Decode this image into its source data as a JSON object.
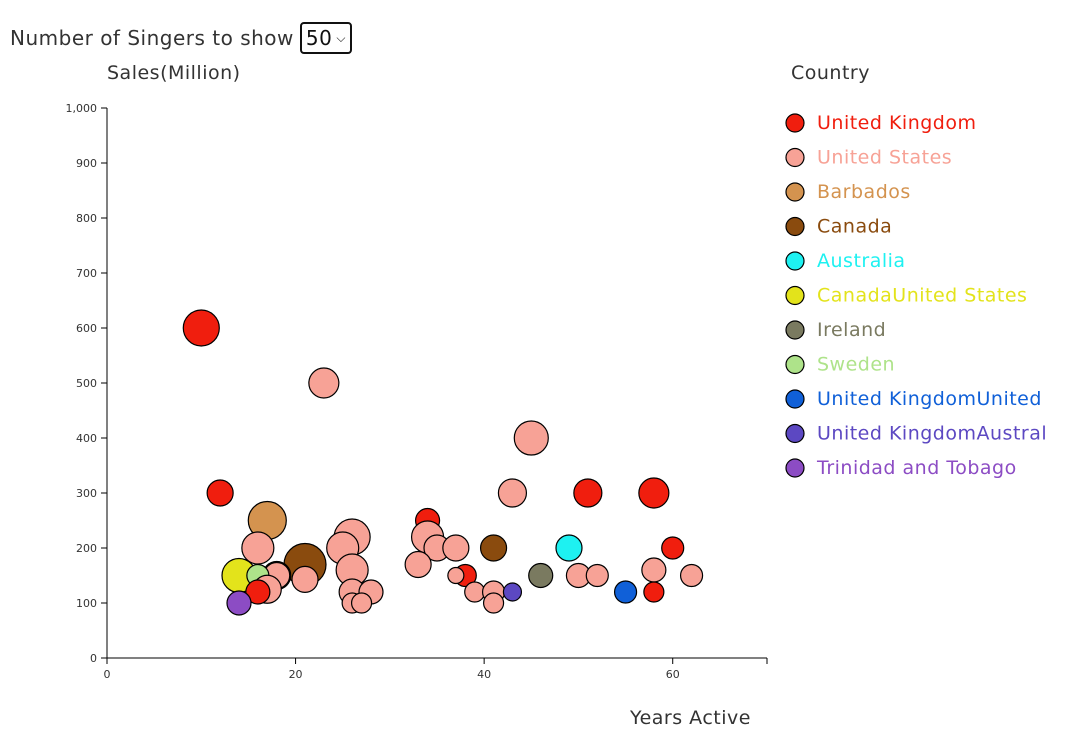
{
  "controls": {
    "label": "Number of Singers to show",
    "selected": "50"
  },
  "legend": {
    "title": "Country",
    "items": [
      {
        "label": "United Kingdom",
        "color": "#f01e0e"
      },
      {
        "label": "United States",
        "color": "#f7a296"
      },
      {
        "label": "Barbados",
        "color": "#d4934f"
      },
      {
        "label": "Canada",
        "color": "#8a4b0e"
      },
      {
        "label": "Australia",
        "color": "#1ef1f1"
      },
      {
        "label": "CanadaUnited States",
        "color": "#e3e31b"
      },
      {
        "label": "Ireland",
        "color": "#7a7a60"
      },
      {
        "label": "Sweden",
        "color": "#aee38a"
      },
      {
        "label": "United KingdomUnited",
        "color": "#1060d8"
      },
      {
        "label": "United KingdomAustral",
        "color": "#5c48c2"
      },
      {
        "label": "Trinidad and Tobago",
        "color": "#8c4cc4"
      }
    ]
  },
  "chart_data": {
    "type": "scatter",
    "xlabel": "Years Active",
    "ylabel": "Sales(Million)",
    "xlim": [
      0,
      70
    ],
    "ylim": [
      0,
      1000
    ],
    "xticks": [
      0,
      20,
      40,
      60
    ],
    "yticks": [
      0,
      100,
      200,
      300,
      400,
      500,
      600,
      700,
      800,
      900,
      1000
    ],
    "ytick_labels": [
      "0",
      "100",
      "200",
      "300",
      "400",
      "500",
      "600",
      "700",
      "800",
      "900",
      "1,000"
    ],
    "points": [
      {
        "x": 10,
        "y": 600,
        "country": "United Kingdom",
        "r": 18
      },
      {
        "x": 23,
        "y": 500,
        "country": "United States",
        "r": 15
      },
      {
        "x": 45,
        "y": 400,
        "country": "United States",
        "r": 17
      },
      {
        "x": 12,
        "y": 300,
        "country": "United Kingdom",
        "r": 13
      },
      {
        "x": 43,
        "y": 300,
        "country": "United States",
        "r": 14
      },
      {
        "x": 51,
        "y": 300,
        "country": "United Kingdom",
        "r": 14
      },
      {
        "x": 58,
        "y": 300,
        "country": "United Kingdom",
        "r": 15
      },
      {
        "x": 17,
        "y": 250,
        "country": "Barbados",
        "r": 19
      },
      {
        "x": 34,
        "y": 250,
        "country": "United Kingdom",
        "r": 12
      },
      {
        "x": 26,
        "y": 220,
        "country": "United States",
        "r": 18
      },
      {
        "x": 34,
        "y": 220,
        "country": "United States",
        "r": 16
      },
      {
        "x": 16,
        "y": 200,
        "country": "United States",
        "r": 16
      },
      {
        "x": 25,
        "y": 200,
        "country": "United States",
        "r": 16
      },
      {
        "x": 35,
        "y": 200,
        "country": "United States",
        "r": 13
      },
      {
        "x": 37,
        "y": 200,
        "country": "United States",
        "r": 13
      },
      {
        "x": 41,
        "y": 200,
        "country": "Canada",
        "r": 13
      },
      {
        "x": 49,
        "y": 200,
        "country": "Australia",
        "r": 13
      },
      {
        "x": 60,
        "y": 200,
        "country": "United Kingdom",
        "r": 11
      },
      {
        "x": 21,
        "y": 170,
        "country": "Canada",
        "r": 21
      },
      {
        "x": 33,
        "y": 170,
        "country": "United States",
        "r": 13
      },
      {
        "x": 26,
        "y": 160,
        "country": "United States",
        "r": 16
      },
      {
        "x": 58,
        "y": 160,
        "country": "United States",
        "r": 12
      },
      {
        "x": 14,
        "y": 150,
        "country": "CanadaUnited States",
        "r": 17
      },
      {
        "x": 18,
        "y": 150,
        "country": "Canada",
        "r": 14
      },
      {
        "x": 18,
        "y": 150,
        "country": "United States",
        "r": 13
      },
      {
        "x": 16,
        "y": 150,
        "country": "Sweden",
        "r": 11
      },
      {
        "x": 38,
        "y": 150,
        "country": "United Kingdom",
        "r": 11
      },
      {
        "x": 37,
        "y": 150,
        "country": "United States",
        "r": 8
      },
      {
        "x": 46,
        "y": 150,
        "country": "Ireland",
        "r": 12
      },
      {
        "x": 50,
        "y": 150,
        "country": "United States",
        "r": 12
      },
      {
        "x": 52,
        "y": 150,
        "country": "United States",
        "r": 11
      },
      {
        "x": 62,
        "y": 150,
        "country": "United States",
        "r": 11
      },
      {
        "x": 21,
        "y": 143,
        "country": "United States",
        "r": 13
      },
      {
        "x": 17,
        "y": 125,
        "country": "United States",
        "r": 14
      },
      {
        "x": 26,
        "y": 120,
        "country": "United States",
        "r": 13
      },
      {
        "x": 28,
        "y": 120,
        "country": "United States",
        "r": 12
      },
      {
        "x": 16,
        "y": 120,
        "country": "United Kingdom",
        "r": 12
      },
      {
        "x": 39,
        "y": 120,
        "country": "United States",
        "r": 10
      },
      {
        "x": 41,
        "y": 120,
        "country": "United States",
        "r": 11
      },
      {
        "x": 43,
        "y": 120,
        "country": "United KingdomAustral",
        "r": 9
      },
      {
        "x": 55,
        "y": 120,
        "country": "United KingdomUnited",
        "r": 11
      },
      {
        "x": 58,
        "y": 120,
        "country": "United Kingdom",
        "r": 10
      },
      {
        "x": 14,
        "y": 100,
        "country": "Trinidad and Tobago",
        "r": 12
      },
      {
        "x": 26,
        "y": 100,
        "country": "United States",
        "r": 10
      },
      {
        "x": 27,
        "y": 100,
        "country": "United States",
        "r": 10
      },
      {
        "x": 41,
        "y": 100,
        "country": "United States",
        "r": 10
      }
    ]
  }
}
